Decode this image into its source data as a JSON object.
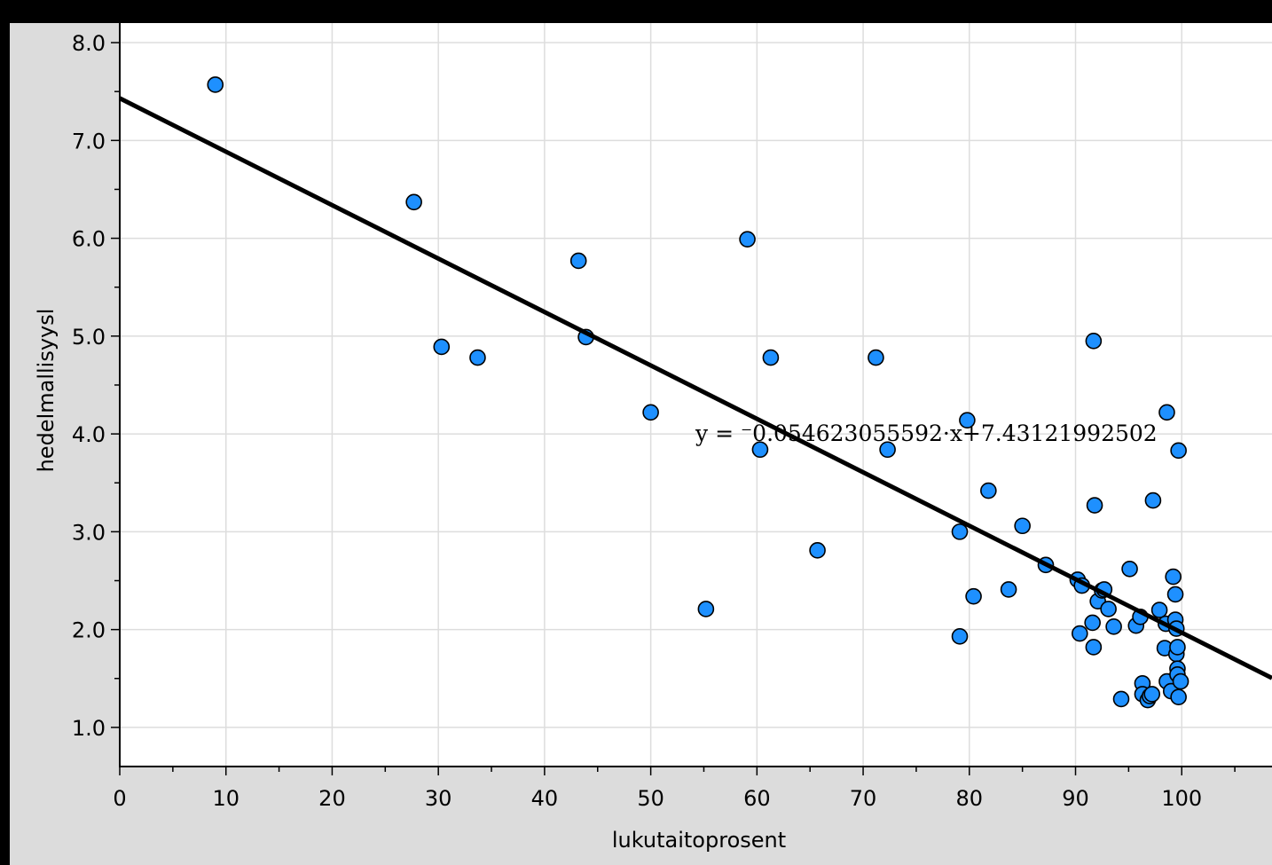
{
  "chart_data": {
    "type": "scatter",
    "xlabel": "lukutaitoprosent",
    "ylabel": "hedelmallisyysl",
    "xlim": [
      0,
      108.5
    ],
    "ylim": [
      0.6,
      8.2
    ],
    "x_ticks": [
      0,
      10,
      20,
      30,
      40,
      50,
      60,
      70,
      80,
      90,
      100
    ],
    "x_tick_labels": [
      "0",
      "10",
      "20",
      "30",
      "40",
      "50",
      "60",
      "70",
      "80",
      "90",
      "100"
    ],
    "y_ticks": [
      1,
      2,
      3,
      4,
      5,
      6,
      7,
      8
    ],
    "y_tick_labels": [
      "1.0",
      "2.0",
      "3.0",
      "4.0",
      "5.0",
      "6.0",
      "7.0",
      "8.0"
    ],
    "grid": true,
    "point_color": "#1e90ff",
    "point_stroke": "#000000",
    "regression": {
      "slope": -0.054623055592,
      "intercept": 7.43121992502,
      "equation_label": "y = ⁻0.054623055592·x+7.43121992502"
    },
    "points": [
      [
        9,
        7.57
      ],
      [
        27.7,
        6.37
      ],
      [
        30.3,
        4.89
      ],
      [
        33.7,
        4.78
      ],
      [
        43.2,
        5.77
      ],
      [
        43.9,
        4.99
      ],
      [
        50,
        4.22
      ],
      [
        55.2,
        2.21
      ],
      [
        59.1,
        5.99
      ],
      [
        60.3,
        3.84
      ],
      [
        61.3,
        4.78
      ],
      [
        65.7,
        2.81
      ],
      [
        71.2,
        4.78
      ],
      [
        72.3,
        3.84
      ],
      [
        79.1,
        3.0
      ],
      [
        79.1,
        1.93
      ],
      [
        79.8,
        4.14
      ],
      [
        80.4,
        2.34
      ],
      [
        81.8,
        3.42
      ],
      [
        83.7,
        2.41
      ],
      [
        85,
        3.06
      ],
      [
        87.2,
        2.66
      ],
      [
        90.2,
        2.51
      ],
      [
        90.4,
        1.96
      ],
      [
        90.6,
        2.45
      ],
      [
        91.6,
        2.07
      ],
      [
        91.7,
        1.82
      ],
      [
        91.7,
        4.95
      ],
      [
        91.8,
        3.27
      ],
      [
        92.1,
        2.29
      ],
      [
        92.5,
        2.4
      ],
      [
        92.7,
        2.41
      ],
      [
        93.1,
        2.21
      ],
      [
        93.6,
        2.03
      ],
      [
        94.3,
        1.29
      ],
      [
        95.1,
        2.62
      ],
      [
        95.7,
        2.04
      ],
      [
        96.1,
        2.13
      ],
      [
        96.3,
        1.45
      ],
      [
        96.3,
        1.34
      ],
      [
        96.8,
        1.28
      ],
      [
        97,
        1.32
      ],
      [
        97.2,
        1.34
      ],
      [
        97.3,
        3.32
      ],
      [
        97.9,
        2.2
      ],
      [
        98.4,
        1.81
      ],
      [
        98.5,
        2.06
      ],
      [
        98.6,
        1.47
      ],
      [
        98.6,
        4.22
      ],
      [
        99,
        1.37
      ],
      [
        99.2,
        2.54
      ],
      [
        99.4,
        2.36
      ],
      [
        99.4,
        2.1
      ],
      [
        99.5,
        2.01
      ],
      [
        99.5,
        1.75
      ],
      [
        99.6,
        1.82
      ],
      [
        99.6,
        1.6
      ],
      [
        99.6,
        1.54
      ],
      [
        99.7,
        1.31
      ],
      [
        99.7,
        3.83
      ],
      [
        99.9,
        1.47
      ]
    ]
  }
}
